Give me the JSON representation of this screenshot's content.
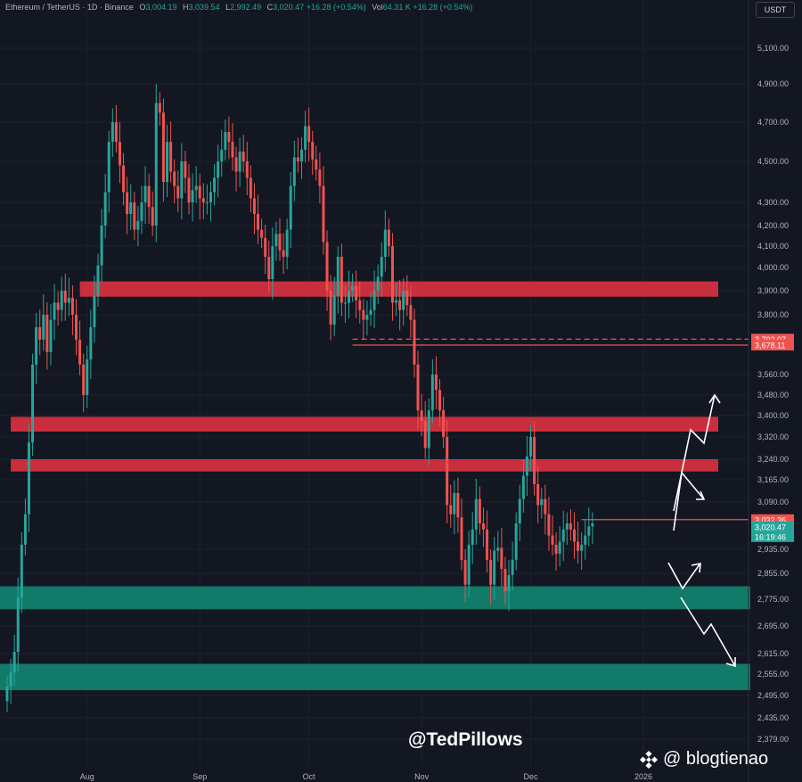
{
  "header": {
    "symbol": "Ethereum / TetherUS · 1D · Binance",
    "o_label": "O",
    "o": "3,004.19",
    "h_label": "H",
    "h": "3,039.54",
    "l_label": "L",
    "l": "2,992.49",
    "c_label": "C",
    "c": "3,020.47",
    "change": "+16.28 (+0.54%)",
    "vol_label": "Vol",
    "vol": "64.31 K",
    "vol_change": "+16.28 (+0.54%)"
  },
  "currency": "USDT",
  "watermark": "@TedPillows",
  "watermark2": "@ blogtienao",
  "colors": {
    "bg": "#131722",
    "up": "#26a69a",
    "down": "#ef5350",
    "resistance": "#d32f3f",
    "support": "#11806d"
  },
  "chart_data": {
    "type": "candlestick",
    "y_ticks": [
      "5,100.00",
      "4,900.00",
      "4,700.00",
      "4,500.00",
      "4,300.00",
      "4,200.00",
      "4,100.00",
      "4,000.00",
      "3,900.00",
      "3,800.00",
      "3,702.07",
      "3,678.11",
      "3,560.00",
      "3,480.00",
      "3,400.00",
      "3,320.00",
      "3,240.00",
      "3,165.00",
      "3,090.00",
      "3,032.36",
      "3,020.47",
      "2,935.00",
      "2,855.00",
      "2,775.00",
      "2,695.00",
      "2,615.00",
      "2,555.00",
      "2,495.00",
      "2,435.00",
      "2,379.00"
    ],
    "y_tick_values": [
      5100,
      4900,
      4700,
      4500,
      4300,
      4200,
      4100,
      4000,
      3900,
      3800,
      3560,
      3480,
      3400,
      3320,
      3240,
      3165,
      3090,
      2935,
      2855,
      2775,
      2695,
      2615,
      2555,
      2495,
      2435,
      2379
    ],
    "x_labels": [
      "Aug",
      "Sep",
      "Oct",
      "Nov",
      "Dec",
      "2026"
    ],
    "x_label_dates": [
      "2025-08-01",
      "2025-09-01",
      "2025-10-01",
      "2025-11-01",
      "2025-12-01",
      "2026-01-01"
    ],
    "start_date": "2025-07-10",
    "end_date": "2026-01-04",
    "price_labels": [
      {
        "text": "3,702.07",
        "style": "red"
      },
      {
        "text": "3,678.11",
        "style": "red"
      },
      {
        "text": "3,032.36",
        "style": "red"
      },
      {
        "text": "3,020.47",
        "style": "green"
      },
      {
        "text": "16:19:46",
        "style": "green"
      }
    ],
    "zones": [
      {
        "type": "resistance",
        "from": "2025-07-30",
        "top": 3940,
        "bottom": 3875
      },
      {
        "type": "resistance",
        "from": "2025-07-11",
        "top": 3395,
        "bottom": 3340
      },
      {
        "type": "resistance",
        "from": "2025-07-11",
        "top": 3240,
        "bottom": 3195
      },
      {
        "type": "support",
        "from": "2025-07-01",
        "top": 2815,
        "bottom": 2745
      },
      {
        "type": "support",
        "from": "2025-07-01",
        "top": 2585,
        "bottom": 2510
      }
    ],
    "lines": [
      {
        "style": "dashed",
        "price": 3702.07,
        "from": "2025-10-13"
      },
      {
        "style": "solid",
        "price": 3678.11,
        "from": "2025-10-13"
      },
      {
        "style": "solid",
        "price": 3032.36,
        "from": "2025-12-15"
      }
    ],
    "closes": [
      2520,
      2560,
      2620,
      2780,
      2950,
      3050,
      3300,
      3600,
      3750,
      3700,
      3800,
      3650,
      3780,
      3850,
      3820,
      3900,
      3850,
      3870,
      3800,
      3700,
      3600,
      3480,
      3620,
      3750,
      3880,
      4010,
      4200,
      4350,
      4600,
      4700,
      4600,
      4480,
      4350,
      4250,
      4300,
      4180,
      4220,
      4300,
      4380,
      4280,
      4200,
      4800,
      4750,
      4400,
      4600,
      4450,
      4380,
      4320,
      4500,
      4420,
      4300,
      4360,
      4380,
      4320,
      4300,
      4300,
      4350,
      4420,
      4500,
      4560,
      4650,
      4600,
      4520,
      4450,
      4550,
      4500,
      4420,
      4320,
      4250,
      4180,
      4140,
      4050,
      3950,
      4100,
      4160,
      4080,
      4050,
      4180,
      4380,
      4520,
      4500,
      4560,
      4680,
      4600,
      4510,
      4460,
      4380,
      4120,
      3900,
      3760,
      3880,
      4050,
      3850,
      3850,
      3900,
      3920,
      3860,
      3820,
      3780,
      3800,
      3820,
      3900,
      3960,
      4050,
      4180,
      4100,
      3850,
      3860,
      3820,
      3900,
      3840,
      3780,
      3600,
      3420,
      3380,
      3280,
      3420,
      3560,
      3500,
      3420,
      3320,
      3080,
      3050,
      3120,
      3040,
      2900,
      2820,
      2950,
      3000,
      3100,
      3020,
      3000,
      2900,
      2820,
      2930,
      2940,
      2870,
      2800,
      2850,
      2900,
      3020,
      3100,
      3180,
      3250,
      3320,
      3150,
      3080,
      3100,
      3050,
      2980,
      2950,
      2920,
      2960,
      3000,
      3020,
      3000,
      2960,
      2930,
      2950,
      2980,
      3010,
      3020
    ]
  }
}
